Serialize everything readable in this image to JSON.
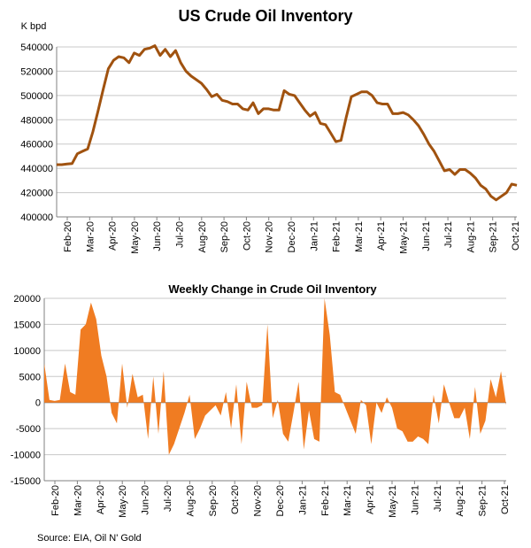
{
  "chart_data": [
    {
      "type": "line",
      "title": "US Crude Oil Inventory",
      "ylabel": "K bpd",
      "ylim": [
        400000,
        540000
      ],
      "yticks": [
        400000,
        420000,
        440000,
        460000,
        480000,
        500000,
        520000,
        540000
      ],
      "ytick_labels": [
        "400000",
        "420000",
        "440000",
        "460000",
        "480000",
        "500000",
        "520000",
        "540000"
      ],
      "xticks": [
        "Feb-20",
        "Mar-20",
        "Apr-20",
        "May-20",
        "Jun-20",
        "Jul-20",
        "Aug-20",
        "Sep-20",
        "Oct-20",
        "Nov-20",
        "Dec-20",
        "Jan-21",
        "Feb-21",
        "Mar-21",
        "Apr-21",
        "May-21",
        "Jun-21",
        "Jul-21",
        "Aug-21",
        "Sep-21",
        "Oct-21"
      ],
      "grid": true,
      "color": "#a0520f",
      "series": [
        {
          "values": [
            443000,
            443000,
            443500,
            444000,
            452000,
            454000,
            456000,
            470000,
            487000,
            505000,
            522000,
            529000,
            532000,
            531000,
            527000,
            535000,
            533000,
            538000,
            539000,
            541000,
            533000,
            538000,
            532000,
            537000,
            527000,
            520000,
            516000,
            513000,
            510000,
            505000,
            499000,
            501000,
            496000,
            495000,
            493000,
            493000,
            489000,
            488000,
            494000,
            485000,
            489000,
            489000,
            488000,
            488000,
            504000,
            501000,
            500000,
            494000,
            488000,
            483000,
            486000,
            477000,
            476000,
            469000,
            462000,
            463000,
            482000,
            499000,
            501000,
            503000,
            503000,
            500000,
            494000,
            493000,
            493000,
            485000,
            485000,
            486000,
            484000,
            480000,
            475000,
            468000,
            460000,
            454000,
            446000,
            438000,
            439000,
            435000,
            439000,
            439000,
            436000,
            432000,
            426000,
            423000,
            417000,
            414000,
            417000,
            420000,
            427000,
            426000
          ]
        }
      ]
    },
    {
      "type": "area",
      "title": "Weekly Change in Crude Oil Inventory",
      "ylim": [
        -15000,
        20000
      ],
      "yticks": [
        -15000,
        -10000,
        -5000,
        0,
        5000,
        10000,
        15000,
        20000
      ],
      "ytick_labels": [
        "-15000",
        "-10000",
        "-5000",
        "0",
        "5000",
        "10000",
        "15000",
        "20000"
      ],
      "xticks": [
        "Feb-20",
        "Mar-20",
        "Apr-20",
        "May-20",
        "Jun-20",
        "Jul-20",
        "Aug-20",
        "Sep-20",
        "Oct-20",
        "Nov-20",
        "Dec-20",
        "Jan-21",
        "Feb-21",
        "Mar-21",
        "Apr-21",
        "May-21",
        "Jun-21",
        "Jul-21",
        "Aug-21",
        "Sep-21",
        "Oct-21"
      ],
      "grid": true,
      "color": "#f07c22",
      "series": [
        {
          "values": [
            7500,
            500,
            300,
            500,
            7500,
            2000,
            1500,
            14000,
            15000,
            19200,
            16000,
            9000,
            5000,
            -2000,
            -4000,
            7500,
            -1000,
            5500,
            1000,
            1500,
            -7000,
            5000,
            -6000,
            6000,
            -10000,
            -8000,
            -5000,
            -2000,
            1500,
            -7000,
            -5000,
            -2500,
            -1500,
            -500,
            -2500,
            2000,
            -5000,
            3500,
            -8000,
            4000,
            -1000,
            -1000,
            -500,
            15000,
            -3000,
            500,
            -6000,
            -7500,
            -2000,
            4000,
            -9000,
            -1500,
            -7000,
            -7500,
            20000,
            13000,
            2000,
            1500,
            -1000,
            -3500,
            -6000,
            500,
            -500,
            -8000,
            0,
            -2000,
            1000,
            -1000,
            -5000,
            -5500,
            -7500,
            -7500,
            -6500,
            -7000,
            -8000,
            1500,
            -4000,
            3500,
            0,
            -3000,
            -3000,
            -1000,
            -7000,
            3000,
            -6000,
            -3500,
            4500,
            1000,
            6000,
            -500
          ]
        }
      ]
    }
  ],
  "source": "Source: EIA, Oil N' Gold"
}
